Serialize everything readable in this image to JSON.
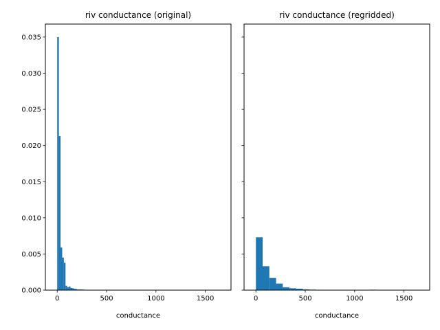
{
  "chart_data": [
    {
      "type": "bar",
      "title": "riv conductance (original)",
      "xlabel": "conductance",
      "ylabel": "",
      "xlim": [
        -120,
        1760
      ],
      "ylim": [
        0,
        0.0368
      ],
      "xticks": [
        0,
        500,
        1000,
        1500
      ],
      "xtick_labels": [
        "0",
        "500",
        "1000",
        "1500"
      ],
      "yticks": [
        0,
        0.005,
        0.01,
        0.015,
        0.02,
        0.025,
        0.03,
        0.035
      ],
      "ytick_labels": [
        "0.000",
        "0.005",
        "0.010",
        "0.015",
        "0.020",
        "0.025",
        "0.030",
        "0.035"
      ],
      "ytick_labels_visible": true,
      "color": "#1f77b4",
      "bin_width": 16.8,
      "bin_start": 0,
      "values": [
        0.035,
        0.0213,
        0.0059,
        0.0045,
        0.0038,
        0.0006,
        0.0004,
        0.0005,
        0.0003,
        0.00025,
        0.0002,
        0.00015,
        0.0001,
        0.0001,
        0.0001,
        8e-05,
        6e-05,
        5e-05
      ]
    },
    {
      "type": "bar",
      "title": "riv conductance (regridded)",
      "xlabel": "conductance",
      "ylabel": "",
      "xlim": [
        -120,
        1760
      ],
      "ylim": [
        0,
        0.0368
      ],
      "xticks": [
        0,
        500,
        1000,
        1500
      ],
      "xtick_labels": [
        "0",
        "500",
        "1000",
        "1500"
      ],
      "yticks": [
        0,
        0.005,
        0.01,
        0.015,
        0.02,
        0.025,
        0.03,
        0.035
      ],
      "ytick_labels": [],
      "ytick_labels_visible": false,
      "color": "#1f77b4",
      "bin_width": 68,
      "bin_start": 0,
      "values": [
        0.0073,
        0.0033,
        0.0017,
        0.0009,
        0.0004,
        0.00025,
        0.0002,
        0.0001,
        7e-05,
        5e-05,
        4e-05,
        3e-05,
        2e-05,
        1e-05,
        1e-05,
        0.0,
        2e-05,
        6e-05,
        4e-05
      ]
    }
  ]
}
